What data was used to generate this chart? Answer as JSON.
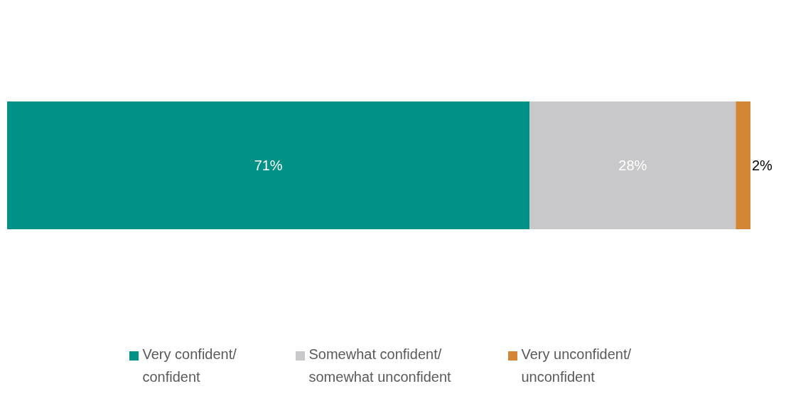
{
  "chart_data": {
    "type": "bar",
    "orientation": "horizontal",
    "stacked": true,
    "categories": [
      null
    ],
    "series": [
      {
        "name": "Very confident/ confident",
        "color": "#009286",
        "values": [
          71
        ],
        "value_labels": [
          "71%"
        ]
      },
      {
        "name": "Somewhat confident/ somewhat unconfident",
        "color": "#c8c8ca",
        "values": [
          28
        ],
        "value_labels": [
          "28%"
        ]
      },
      {
        "name": "Very unconfident/ unconfident",
        "color": "#d58536",
        "values": [
          2
        ],
        "value_labels": [
          "2%"
        ]
      }
    ],
    "legend": "bottom",
    "grid": false
  }
}
